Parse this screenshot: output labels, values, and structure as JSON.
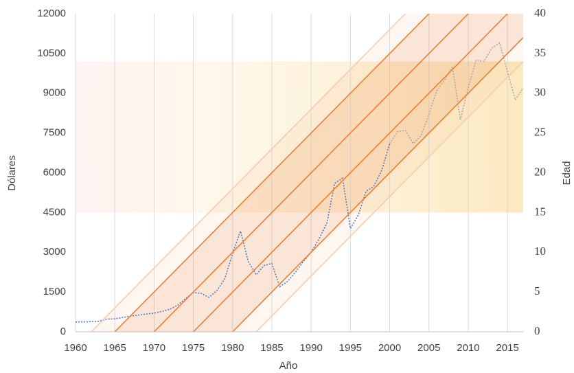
{
  "chart_data": {
    "type": "line",
    "x_label": "Año",
    "y_label": "Dólares",
    "y2_label": "Edad",
    "xlim": [
      1960,
      2017
    ],
    "xticks": [
      1960,
      1965,
      1970,
      1975,
      1980,
      1985,
      1990,
      1995,
      2000,
      2005,
      2010,
      2015
    ],
    "ylim": [
      0,
      12000
    ],
    "yticks": [
      0,
      1500,
      3000,
      4500,
      6000,
      7500,
      9000,
      10500,
      12000
    ],
    "y2lim": [
      0,
      40
    ],
    "y2ticks": [
      0,
      5,
      10,
      15,
      20,
      25,
      30,
      35,
      40
    ],
    "grid": "x",
    "shaded_y2_range": [
      15,
      34
    ],
    "series": [
      {
        "color": "#4472c4",
        "x": [
          1960,
          1961,
          1962,
          1963,
          1964,
          1965,
          1966,
          1967,
          1968,
          1969,
          1970,
          1971,
          1972,
          1973,
          1974,
          1975,
          1976,
          1977,
          1978,
          1979,
          1980,
          1981,
          1982,
          1983,
          1984,
          1985,
          1986,
          1987,
          1988,
          1989,
          1990,
          1991,
          1992,
          1993,
          1994,
          1995,
          1996,
          1997,
          1998,
          1999,
          2000
        ],
        "values": [
          370,
          370,
          380,
          400,
          480,
          490,
          540,
          590,
          630,
          670,
          700,
          770,
          850,
          1000,
          1250,
          1480,
          1450,
          1300,
          1550,
          2000,
          2950,
          3800,
          2650,
          2150,
          2500,
          2580,
          1700,
          1900,
          2250,
          2650,
          3000,
          3500,
          4100,
          5600,
          5800,
          3900,
          4400,
          5300,
          5500,
          6100,
          7100
        ]
      },
      {
        "color": "#a5a5a5",
        "x": [
          2000,
          2001,
          2002,
          2003,
          2004,
          2005,
          2006,
          2007,
          2008,
          2009,
          2010,
          2011,
          2012,
          2013,
          2014,
          2015,
          2016,
          2017
        ],
        "values": [
          7100,
          7550,
          7600,
          7100,
          7400,
          8200,
          9100,
          9500,
          10000,
          8000,
          9200,
          10250,
          10200,
          10700,
          10900,
          9800,
          8750,
          9200
        ]
      },
      {
        "color": "#f8c9ae",
        "axis": "y2",
        "x": [
          1962,
          2002
        ],
        "values": [
          0,
          40
        ]
      },
      {
        "color": "#ed7d31",
        "axis": "y2",
        "x": [
          1965,
          2005
        ],
        "values": [
          0,
          40
        ]
      },
      {
        "color": "#ed7d31",
        "axis": "y2",
        "x": [
          1970,
          2010
        ],
        "values": [
          0,
          40
        ]
      },
      {
        "color": "#ed7d31",
        "axis": "y2",
        "x": [
          1975,
          2015
        ],
        "values": [
          0,
          40
        ]
      },
      {
        "color": "#ed7d31",
        "axis": "y2",
        "x": [
          1980,
          2017
        ],
        "values": [
          0,
          37
        ]
      },
      {
        "color": "#f8c9ae",
        "axis": "y2",
        "x": [
          1983,
          2017
        ],
        "values": [
          0,
          34
        ]
      }
    ]
  }
}
